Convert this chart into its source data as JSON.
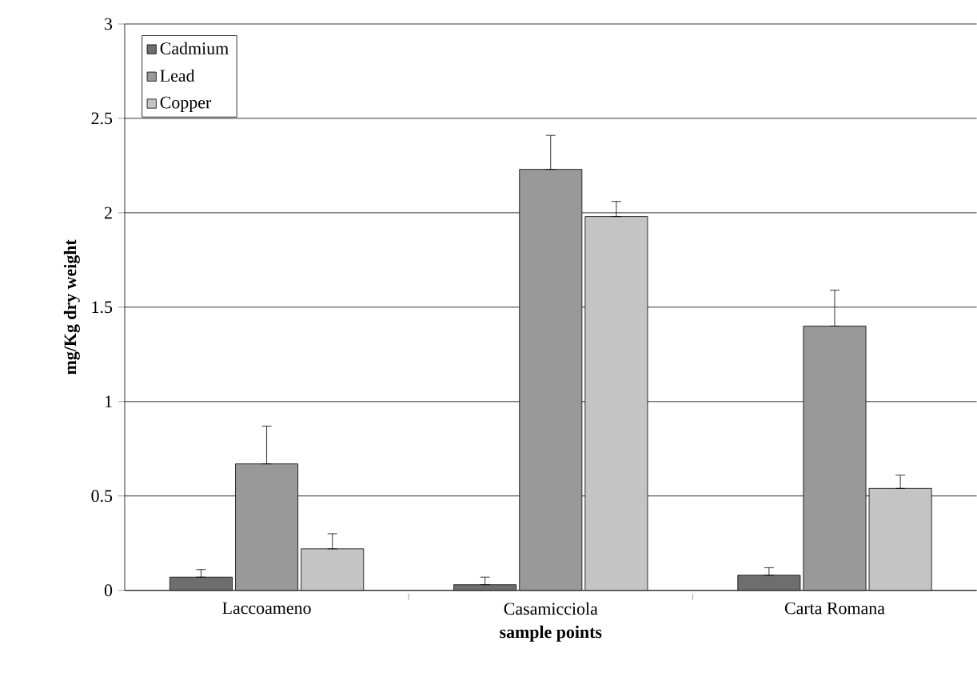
{
  "chart_data": {
    "type": "bar",
    "xlabel": "sample points",
    "ylabel": "mg/Kg dry weight",
    "categories": [
      "Laccoameno",
      "Casamicciola",
      "Carta Romana"
    ],
    "series": [
      {
        "name": "Cadmium",
        "color": "#6e6e6e",
        "values": [
          0.07,
          0.03,
          0.08
        ],
        "errors": [
          [
            0.07,
            0.11
          ],
          [
            0.03,
            0.07
          ],
          [
            0.08,
            0.12
          ]
        ]
      },
      {
        "name": "Lead",
        "color": "#999999",
        "values": [
          0.67,
          2.23,
          1.4
        ],
        "errors": [
          [
            0.67,
            0.87
          ],
          [
            2.23,
            2.41
          ],
          [
            1.4,
            1.59
          ]
        ]
      },
      {
        "name": "Copper",
        "color": "#c4c4c4",
        "values": [
          0.22,
          1.98,
          0.54
        ],
        "errors": [
          [
            0.22,
            0.3
          ],
          [
            1.98,
            2.06
          ],
          [
            0.54,
            0.61
          ]
        ]
      }
    ],
    "ylim": [
      0,
      3
    ],
    "yticks": [
      0,
      0.5,
      1,
      1.5,
      2,
      2.5,
      3
    ],
    "grid": "y",
    "legend": "top left"
  }
}
